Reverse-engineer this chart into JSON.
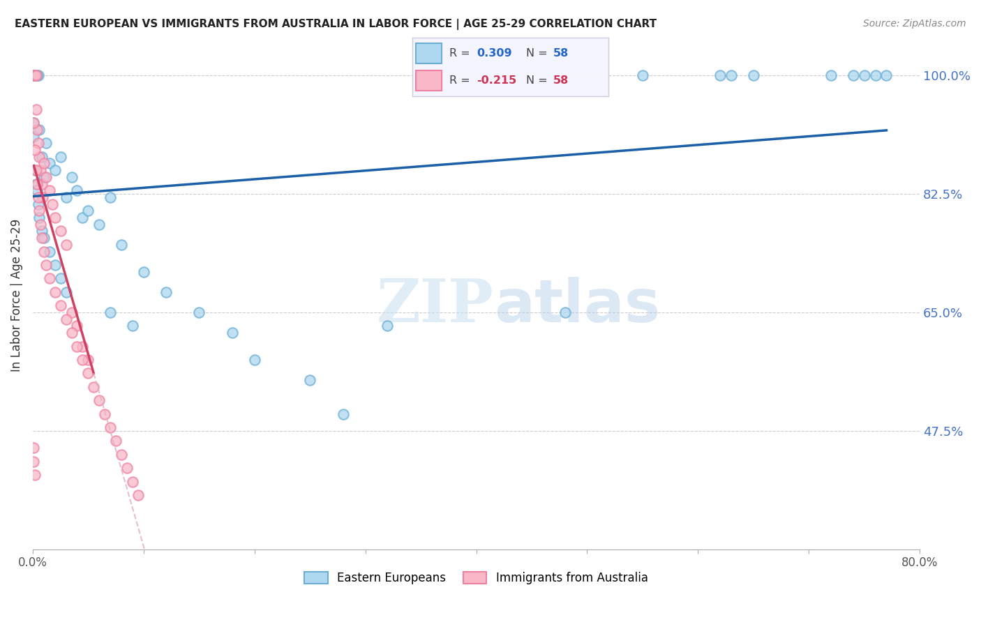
{
  "title": "EASTERN EUROPEAN VS IMMIGRANTS FROM AUSTRALIA IN LABOR FORCE | AGE 25-29 CORRELATION CHART",
  "source": "Source: ZipAtlas.com",
  "ylabel": "In Labor Force | Age 25-29",
  "xlim": [
    0.0,
    0.8
  ],
  "ylim": [
    0.3,
    1.05
  ],
  "xticks": [
    0.0,
    0.1,
    0.2,
    0.3,
    0.4,
    0.5,
    0.6,
    0.7,
    0.8
  ],
  "yticks_right": [
    1.0,
    0.825,
    0.65,
    0.475
  ],
  "ytick_right_labels": [
    "100.0%",
    "82.5%",
    "65.0%",
    "47.5%"
  ],
  "blue_R": 0.309,
  "blue_N": 58,
  "pink_R": -0.215,
  "pink_N": 58,
  "legend_label_blue": "Eastern Europeans",
  "legend_label_pink": "Immigrants from Australia",
  "blue_edge_color": "#6baed6",
  "blue_face_color": "#add8f0",
  "pink_edge_color": "#f080a0",
  "pink_face_color": "#f8b8c8",
  "trend_blue_color": "#1a5fa8",
  "trend_pink_color": "#d04060",
  "trend_pink_dash_color": "#e0b0be",
  "watermark_zip": "ZIP",
  "watermark_atlas": "atlas",
  "blue_x": [
    0.001,
    0.002,
    0.001,
    0.003,
    0.002,
    0.001,
    0.005,
    0.004,
    0.002,
    0.003,
    0.006,
    0.008,
    0.01,
    0.012,
    0.015,
    0.02,
    0.025,
    0.03,
    0.035,
    0.04,
    0.045,
    0.05,
    0.06,
    0.07,
    0.08,
    0.1,
    0.12,
    0.15,
    0.18,
    0.2,
    0.25,
    0.28,
    0.32,
    0.001,
    0.001,
    0.002,
    0.003,
    0.004,
    0.005,
    0.006,
    0.008,
    0.01,
    0.015,
    0.02,
    0.025,
    0.03,
    0.07,
    0.09,
    0.55,
    0.62,
    0.65,
    0.72,
    0.74,
    0.75,
    0.76,
    0.77,
    0.63,
    0.48
  ],
  "blue_y": [
    1.0,
    1.0,
    1.0,
    1.0,
    1.0,
    1.0,
    1.0,
    1.0,
    1.0,
    1.0,
    0.92,
    0.88,
    0.85,
    0.9,
    0.87,
    0.86,
    0.88,
    0.82,
    0.85,
    0.83,
    0.79,
    0.8,
    0.78,
    0.82,
    0.75,
    0.71,
    0.68,
    0.65,
    0.62,
    0.58,
    0.55,
    0.5,
    0.63,
    0.93,
    0.91,
    0.86,
    0.84,
    0.83,
    0.81,
    0.79,
    0.77,
    0.76,
    0.74,
    0.72,
    0.7,
    0.68,
    0.65,
    0.63,
    1.0,
    1.0,
    1.0,
    1.0,
    1.0,
    1.0,
    1.0,
    1.0,
    1.0,
    0.65
  ],
  "pink_x": [
    0.001,
    0.001,
    0.001,
    0.001,
    0.001,
    0.001,
    0.002,
    0.002,
    0.002,
    0.003,
    0.003,
    0.004,
    0.005,
    0.006,
    0.007,
    0.008,
    0.009,
    0.01,
    0.012,
    0.015,
    0.018,
    0.02,
    0.025,
    0.03,
    0.035,
    0.04,
    0.045,
    0.05,
    0.001,
    0.002,
    0.003,
    0.004,
    0.005,
    0.006,
    0.007,
    0.008,
    0.01,
    0.012,
    0.015,
    0.02,
    0.025,
    0.03,
    0.035,
    0.04,
    0.045,
    0.05,
    0.055,
    0.06,
    0.065,
    0.07,
    0.075,
    0.08,
    0.085,
    0.09,
    0.095,
    0.001,
    0.001,
    0.002
  ],
  "pink_y": [
    1.0,
    1.0,
    1.0,
    1.0,
    1.0,
    1.0,
    1.0,
    1.0,
    1.0,
    1.0,
    0.95,
    0.92,
    0.9,
    0.88,
    0.86,
    0.84,
    0.82,
    0.87,
    0.85,
    0.83,
    0.81,
    0.79,
    0.77,
    0.75,
    0.65,
    0.63,
    0.6,
    0.58,
    0.93,
    0.89,
    0.86,
    0.84,
    0.82,
    0.8,
    0.78,
    0.76,
    0.74,
    0.72,
    0.7,
    0.68,
    0.66,
    0.64,
    0.62,
    0.6,
    0.58,
    0.56,
    0.54,
    0.52,
    0.5,
    0.48,
    0.46,
    0.44,
    0.42,
    0.4,
    0.38,
    0.45,
    0.43,
    0.41
  ]
}
